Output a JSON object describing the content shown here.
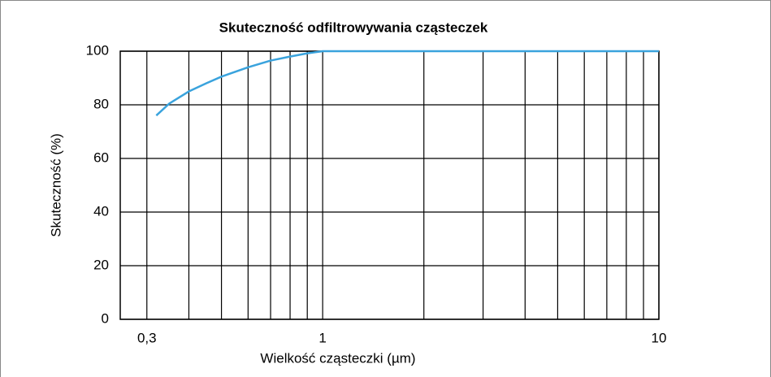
{
  "chart_data": {
    "type": "line",
    "title": "Skuteczność odfiltrowywania cząsteczek",
    "xlabel": "Wielkość cząsteczki (µm)",
    "ylabel": "Skuteczność (%)",
    "xscale": "log",
    "xlim": [
      0.25,
      10
    ],
    "xticks": [
      {
        "value": 0.3,
        "label": "0,3"
      },
      1,
      10
    ],
    "xminorticks": [
      0.4,
      0.5,
      0.6,
      0.7,
      0.8,
      0.9,
      2,
      3,
      4,
      5,
      6,
      7,
      8,
      9
    ],
    "ylim": [
      0,
      100
    ],
    "yticks": [
      0,
      20,
      40,
      60,
      80,
      100
    ],
    "grid": true,
    "x": [
      0.32,
      0.35,
      0.4,
      0.45,
      0.5,
      0.6,
      0.7,
      0.8,
      0.9,
      1,
      2,
      5,
      10
    ],
    "series": [
      {
        "name": "Skuteczność",
        "color": "#3aa3dd",
        "values": [
          76,
          80.5,
          85,
          88,
          90.5,
          94,
          96.5,
          98,
          99.2,
          100,
          100,
          100,
          100
        ]
      }
    ]
  }
}
